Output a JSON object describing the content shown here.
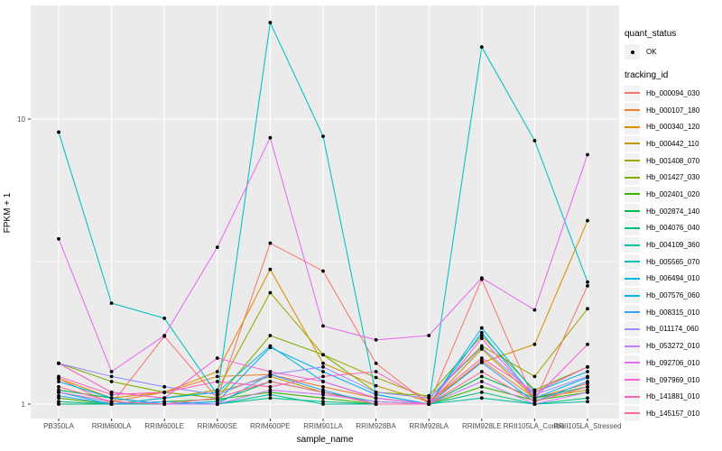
{
  "legend": {
    "quant_status_title": "quant_status",
    "quant_status_items": [
      {
        "label": "OK",
        "symbol": "point",
        "color": "#000000"
      }
    ],
    "tracking_id_title": "tracking_id"
  },
  "chart_data": {
    "type": "line",
    "title": "",
    "xlabel": "sample_name",
    "ylabel": "FPKM + 1",
    "yscale": "log10",
    "ylim": [
      0.93,
      24
    ],
    "yticks": [
      1,
      10
    ],
    "ytick_labels": [
      "1",
      "10"
    ],
    "y_minor_gridlines": [
      3.1623
    ],
    "grid": true,
    "legend_position": "right",
    "panel_bg": "#EBEBEB",
    "grid_color": "#FFFFFF",
    "point_color": "#000000",
    "tick_color": "#333333",
    "tick_label_color": "#4D4D4D",
    "categories": [
      "PB350LA",
      "RRIM600LA",
      "RRIM600LE",
      "RRIM600SE",
      "RRIM600PE",
      "RRIM901LA",
      "RRIM928BA",
      "RRIM928LA",
      "RRIM928LE",
      "RRII105LA_Control",
      "RRII105LA_Stressed"
    ],
    "series": [
      {
        "name": "Hb_000094_030",
        "color": "#F8766D",
        "values": [
          1.23,
          1.0,
          1.73,
          1.05,
          3.67,
          2.93,
          1.39,
          1.0,
          2.74,
          1.02,
          2.6
        ]
      },
      {
        "name": "Hb_000107_180",
        "color": "#EA8331",
        "values": [
          1.1,
          1.02,
          1.1,
          1.25,
          1.27,
          1.15,
          1.05,
          1.0,
          1.42,
          1.05,
          1.18
        ]
      },
      {
        "name": "Hb_000340_120",
        "color": "#D89000",
        "values": [
          1.23,
          1.05,
          1.1,
          1.3,
          2.97,
          1.39,
          1.16,
          1.02,
          1.4,
          1.62,
          4.4
        ]
      },
      {
        "name": "Hb_000442_110",
        "color": "#C09B00",
        "values": [
          1.02,
          1.0,
          1.05,
          1.1,
          1.25,
          1.1,
          1.0,
          1.0,
          1.56,
          1.05,
          1.12
        ]
      },
      {
        "name": "Hb_001408_070",
        "color": "#A3A500",
        "values": [
          1.39,
          1.1,
          1.05,
          1.12,
          2.46,
          1.49,
          1.24,
          1.05,
          1.6,
          1.25,
          2.16
        ]
      },
      {
        "name": "Hb_001427_030",
        "color": "#7CAE00",
        "values": [
          1.39,
          1.2,
          1.1,
          1.05,
          1.74,
          1.49,
          1.1,
          1.07,
          1.74,
          1.12,
          1.35
        ]
      },
      {
        "name": "Hb_002401_020",
        "color": "#39B600",
        "values": [
          1.05,
          1.0,
          1.02,
          1.04,
          1.1,
          1.05,
          1.0,
          1.0,
          1.15,
          1.03,
          1.1
        ]
      },
      {
        "name": "Hb_002874_140",
        "color": "#00BB4E",
        "values": [
          1.12,
          1.05,
          1.0,
          1.02,
          1.2,
          1.1,
          1.02,
          1.0,
          1.25,
          1.05,
          1.15
        ]
      },
      {
        "name": "Hb_004076_040",
        "color": "#00BF7D",
        "values": [
          1.0,
          1.0,
          1.0,
          1.0,
          1.05,
          1.02,
          1.0,
          1.0,
          1.1,
          1.0,
          1.05
        ]
      },
      {
        "name": "Hb_004109_360",
        "color": "#00C1A3",
        "values": [
          1.02,
          1.0,
          1.0,
          1.0,
          1.08,
          1.0,
          1.0,
          1.0,
          1.05,
          1.0,
          1.02
        ]
      },
      {
        "name": "Hb_005565_070",
        "color": "#00BFC4",
        "values": [
          9.0,
          2.26,
          2.0,
          1.08,
          21.8,
          8.7,
          1.08,
          1.0,
          17.9,
          8.4,
          2.68
        ]
      },
      {
        "name": "Hb_006494_010",
        "color": "#00BAE0",
        "values": [
          1.1,
          1.0,
          1.05,
          1.1,
          1.6,
          1.2,
          1.05,
          1.0,
          1.85,
          1.1,
          1.3
        ]
      },
      {
        "name": "Hb_007576_060",
        "color": "#00B0F6",
        "values": [
          1.2,
          1.05,
          1.0,
          1.02,
          1.58,
          1.3,
          1.08,
          1.0,
          1.78,
          1.05,
          1.24
        ]
      },
      {
        "name": "Hb_008315_010",
        "color": "#35A2FF",
        "values": [
          1.07,
          1.0,
          1.02,
          1.0,
          1.27,
          1.12,
          1.0,
          1.0,
          1.4,
          1.02,
          1.2
        ]
      },
      {
        "name": "Hb_011174_060",
        "color": "#9590FF",
        "values": [
          1.39,
          1.25,
          1.15,
          1.08,
          1.27,
          1.35,
          1.1,
          1.05,
          1.58,
          1.08,
          1.25
        ]
      },
      {
        "name": "Hb_053272_010",
        "color": "#C77CFF",
        "values": [
          1.1,
          1.02,
          1.0,
          1.0,
          1.12,
          1.08,
          1.02,
          1.0,
          1.2,
          1.0,
          1.1
        ]
      },
      {
        "name": "Hb_092706_010",
        "color": "#E76BF3",
        "values": [
          3.8,
          1.3,
          1.74,
          3.55,
          8.6,
          1.88,
          1.68,
          1.74,
          2.77,
          2.14,
          7.5
        ]
      },
      {
        "name": "Hb_097969_010",
        "color": "#FA62DB",
        "values": [
          1.39,
          1.1,
          1.05,
          1.45,
          1.3,
          1.2,
          1.05,
          1.0,
          1.7,
          1.05,
          1.62
        ]
      },
      {
        "name": "Hb_141881_010",
        "color": "#FF62BC",
        "values": [
          1.25,
          1.08,
          1.1,
          1.2,
          1.15,
          1.25,
          1.3,
          1.02,
          1.45,
          1.1,
          1.35
        ]
      },
      {
        "name": "Hb_145157_010",
        "color": "#FF6A98",
        "values": [
          1.15,
          1.02,
          1.0,
          1.05,
          1.2,
          1.1,
          1.0,
          1.0,
          1.3,
          1.02,
          1.15
        ]
      }
    ]
  }
}
